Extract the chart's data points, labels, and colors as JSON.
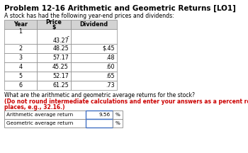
{
  "title": "Problem 12-16 Arithmetic and Geometric Returns [LO1]",
  "subtitle": "A stock has had the following year-end prices and dividends:",
  "years": [
    "1",
    "2",
    "3",
    "4",
    "5",
    "6"
  ],
  "prices": [
    "43.27",
    "48.25",
    "57.17",
    "45.25",
    "52.17",
    "61.25"
  ],
  "dividends": [
    "-",
    "$.45",
    ".48",
    ".60",
    ".65",
    ".73"
  ],
  "q_normal": "What are the arithmetic and geometric average returns for the stock? ",
  "q_red_line1": "(Do not round intermediate calculations and enter your answers as a percent rounded to 2 decimal",
  "q_red_line2": "places, e.g., 32.16.)",
  "row_labels": [
    "Arithmetic average return",
    "Geometric average return"
  ],
  "arith_value": "9.56",
  "bg_color": "#ffffff",
  "text_color": "#000000",
  "red_color": "#cc0000",
  "header_bg": "#d3d3d3",
  "border_color": "#888888",
  "blue_border": "#4472c4",
  "fontsize_title": 7.5,
  "fontsize_body": 6.0,
  "fontsize_table": 5.8
}
